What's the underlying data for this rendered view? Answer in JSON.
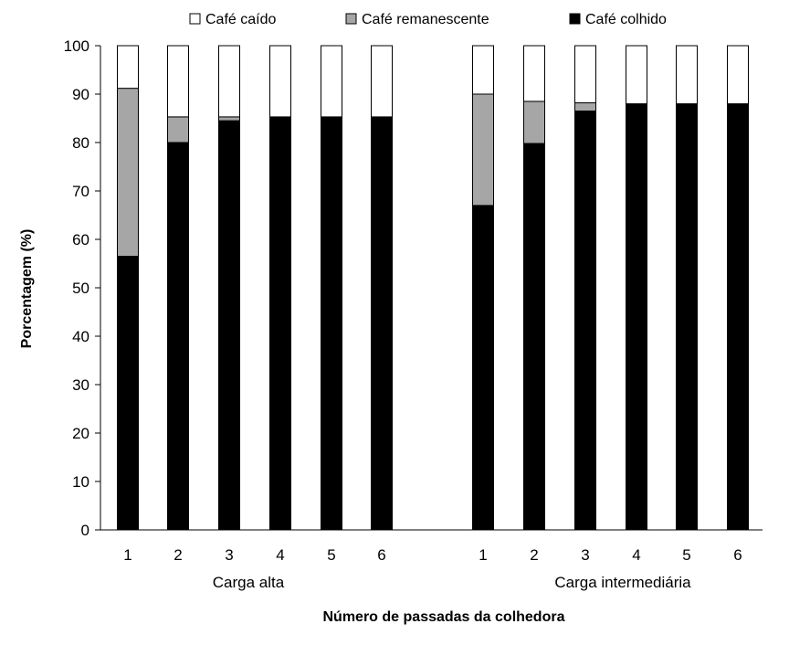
{
  "chart_data": {
    "type": "bar",
    "stacked": true,
    "xlabel": "Número de passadas da colhedora",
    "ylabel": "Porcentagem (%)",
    "ylim": [
      0,
      100
    ],
    "yticks": [
      0,
      10,
      20,
      30,
      40,
      50,
      60,
      70,
      80,
      90,
      100
    ],
    "grid": false,
    "legend_position": "top",
    "groups": [
      {
        "name": "Carga alta",
        "categories": [
          "1",
          "2",
          "3",
          "4",
          "5",
          "6"
        ],
        "series": [
          {
            "name": "Café colhido",
            "color": "#000000",
            "values": [
              56.5,
              80.0,
              84.5,
              85.3,
              85.3,
              85.3
            ]
          },
          {
            "name": "Café remanescente",
            "color": "#a6a6a6",
            "values": [
              34.7,
              5.3,
              0.8,
              0.0,
              0.0,
              0.0
            ]
          },
          {
            "name": "Café caído",
            "color": "#ffffff",
            "values": [
              8.8,
              14.7,
              14.7,
              14.7,
              14.7,
              14.7
            ]
          }
        ]
      },
      {
        "name": "Carga intermediária",
        "categories": [
          "1",
          "2",
          "3",
          "4",
          "5",
          "6"
        ],
        "series": [
          {
            "name": "Café colhido",
            "color": "#000000",
            "values": [
              67.0,
              79.8,
              86.5,
              88.0,
              88.0,
              88.0
            ]
          },
          {
            "name": "Café remanescente",
            "color": "#a6a6a6",
            "values": [
              23.0,
              8.7,
              1.7,
              0.0,
              0.0,
              0.0
            ]
          },
          {
            "name": "Café caído",
            "color": "#ffffff",
            "values": [
              10.0,
              11.5,
              11.8,
              12.0,
              12.0,
              12.0
            ]
          }
        ]
      }
    ],
    "legend": [
      {
        "name": "Café caído",
        "color": "#ffffff"
      },
      {
        "name": "Café remanescente",
        "color": "#a6a6a6"
      },
      {
        "name": "Café colhido",
        "color": "#000000"
      }
    ]
  }
}
